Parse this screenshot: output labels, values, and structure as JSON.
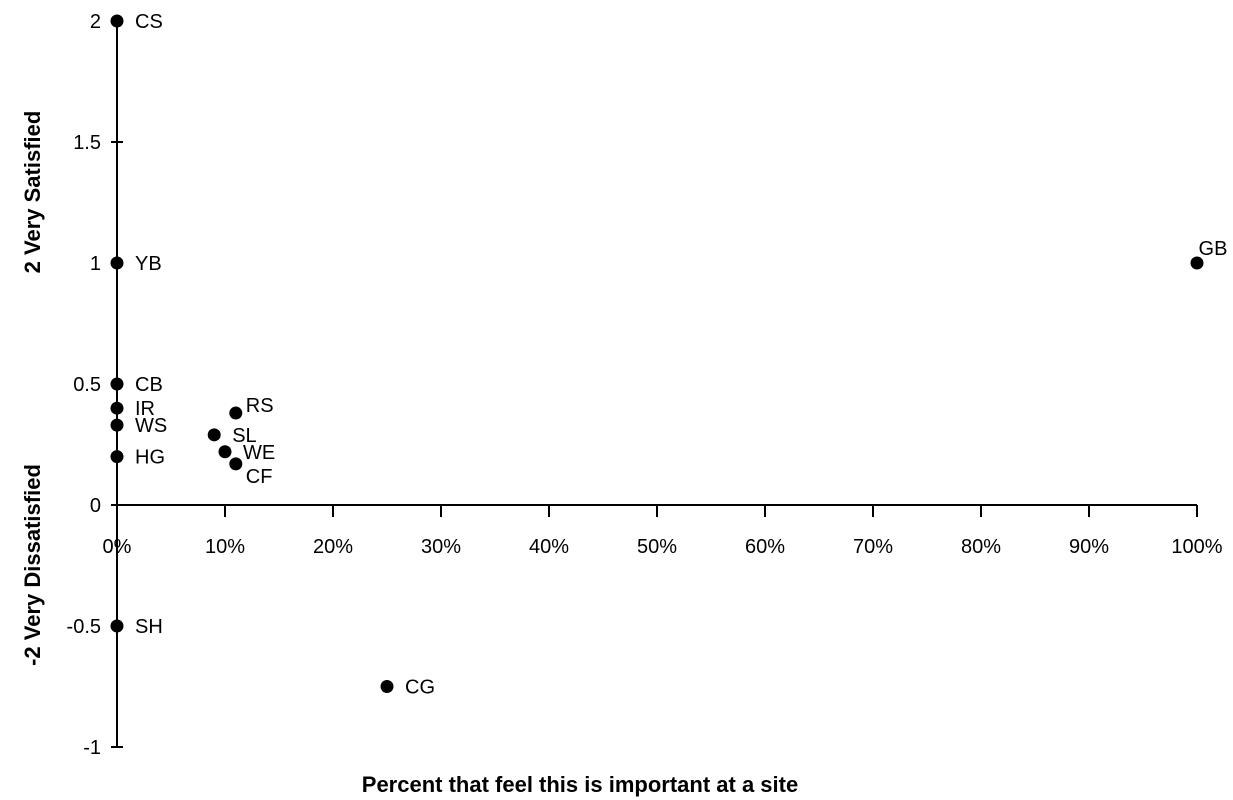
{
  "chart_data": {
    "type": "scatter",
    "title": "",
    "xlabel": "Percent that feel this is important at a site",
    "ylabel_upper": "2 Very Satisfied",
    "ylabel_lower": "-2 Very Dissatisfied",
    "xlim": [
      0,
      100
    ],
    "ylim": [
      -1,
      2
    ],
    "grid": false,
    "legend": "none",
    "marker_color": "#000000",
    "x_ticks": [
      {
        "value": 0,
        "label": "0%"
      },
      {
        "value": 10,
        "label": "10%"
      },
      {
        "value": 20,
        "label": "20%"
      },
      {
        "value": 30,
        "label": "30%"
      },
      {
        "value": 40,
        "label": "40%"
      },
      {
        "value": 50,
        "label": "50%"
      },
      {
        "value": 60,
        "label": "60%"
      },
      {
        "value": 70,
        "label": "70%"
      },
      {
        "value": 80,
        "label": "80%"
      },
      {
        "value": 90,
        "label": "90%"
      },
      {
        "value": 100,
        "label": "100%"
      }
    ],
    "y_ticks": [
      {
        "value": 2,
        "label": "2"
      },
      {
        "value": 1.5,
        "label": "1.5"
      },
      {
        "value": 1,
        "label": "1"
      },
      {
        "value": 0.5,
        "label": "0.5"
      },
      {
        "value": 0,
        "label": "0"
      },
      {
        "value": -0.5,
        "label": "-0.5"
      },
      {
        "value": -1,
        "label": "-1"
      }
    ],
    "points": [
      {
        "label": "CS",
        "x": 0,
        "y": 2,
        "label_pos": "right"
      },
      {
        "label": "YB",
        "x": 0,
        "y": 1,
        "label_pos": "right"
      },
      {
        "label": "CB",
        "x": 0,
        "y": 0.5,
        "label_pos": "right"
      },
      {
        "label": "IR",
        "x": 0,
        "y": 0.4,
        "label_pos": "right"
      },
      {
        "label": "WS",
        "x": 0,
        "y": 0.33,
        "label_pos": "right"
      },
      {
        "label": "HG",
        "x": 0,
        "y": 0.2,
        "label_pos": "right"
      },
      {
        "label": "SH",
        "x": 0,
        "y": -0.5,
        "label_pos": "right"
      },
      {
        "label": "RS",
        "x": 11,
        "y": 0.38,
        "label_pos": "upper-right"
      },
      {
        "label": "SL",
        "x": 9,
        "y": 0.29,
        "label_pos": "right"
      },
      {
        "label": "WE",
        "x": 10,
        "y": 0.22,
        "label_pos": "right"
      },
      {
        "label": "CF",
        "x": 11,
        "y": 0.17,
        "label_pos": "lower-right"
      },
      {
        "label": "CG",
        "x": 25,
        "y": -0.75,
        "label_pos": "right"
      },
      {
        "label": "GB",
        "x": 100,
        "y": 1,
        "label_pos": "above"
      }
    ]
  }
}
